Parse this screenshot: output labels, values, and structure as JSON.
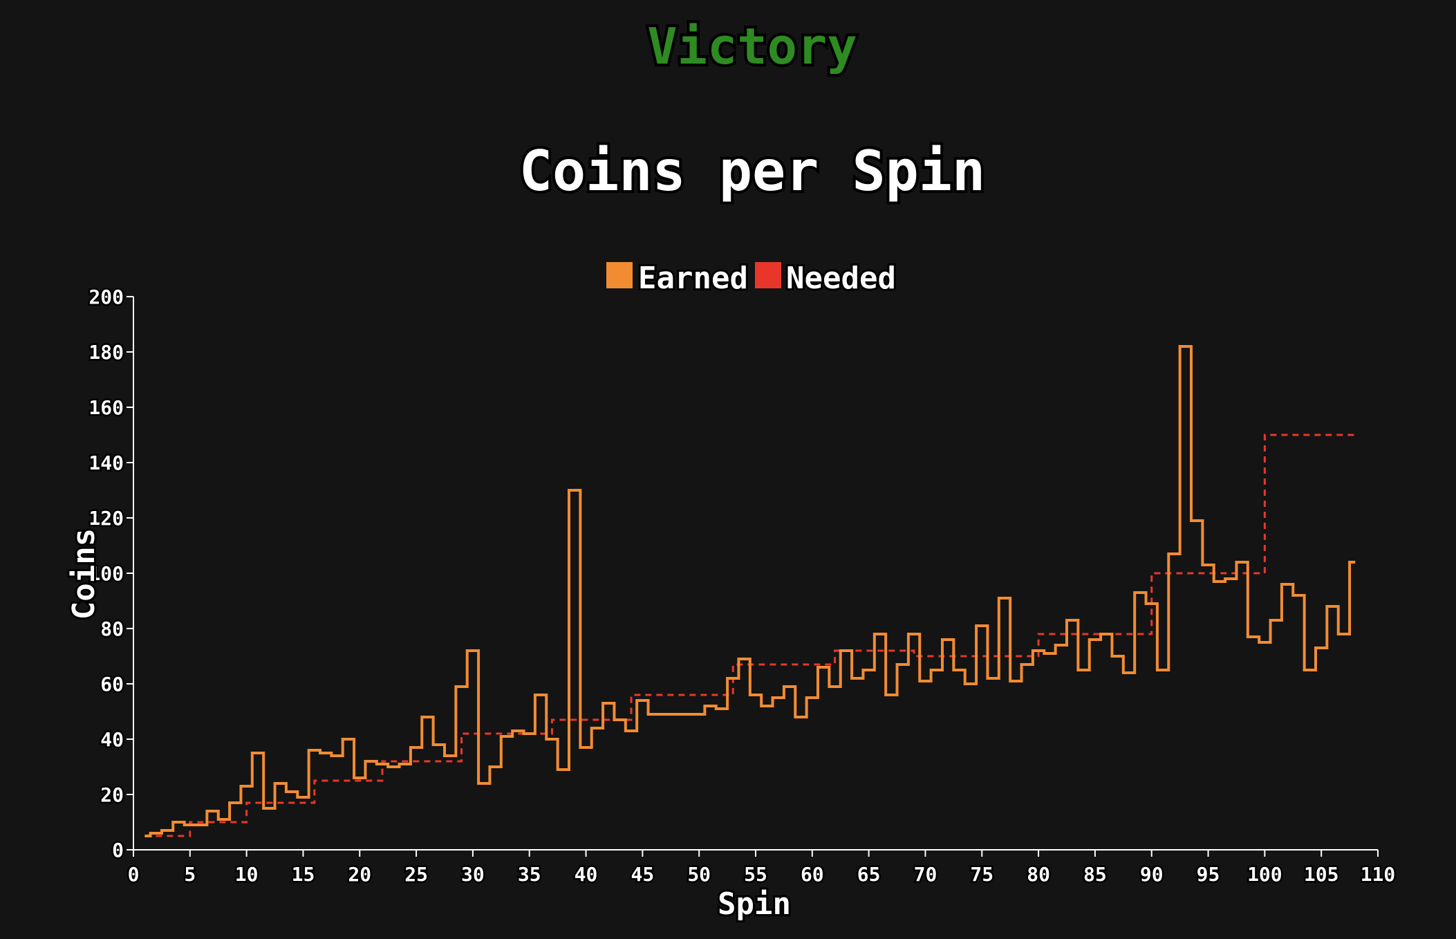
{
  "status": {
    "text": "Victory",
    "color": "#2e8b22"
  },
  "colors": {
    "background": "#141414",
    "axis": "#ffffff",
    "earned": "#f28c33",
    "needed": "#e8372a"
  },
  "chart_data": {
    "type": "line",
    "step": true,
    "title": "Coins per Spin",
    "xlabel": "Spin",
    "ylabel": "Coins",
    "xlim": [
      0,
      110
    ],
    "ylim": [
      0,
      200
    ],
    "xticks": [
      0,
      5,
      10,
      15,
      20,
      25,
      30,
      35,
      40,
      45,
      50,
      55,
      60,
      65,
      70,
      75,
      80,
      85,
      90,
      95,
      100,
      105,
      110
    ],
    "yticks": [
      0,
      20,
      40,
      60,
      80,
      100,
      120,
      140,
      160,
      180,
      200
    ],
    "legend_position": "top-center",
    "grid": false,
    "series": [
      {
        "name": "Earned",
        "style": "solid",
        "color": "#f28c33",
        "x": [
          1,
          2,
          3,
          4,
          5,
          6,
          7,
          8,
          9,
          10,
          11,
          12,
          13,
          14,
          15,
          16,
          17,
          18,
          19,
          20,
          21,
          22,
          23,
          24,
          25,
          26,
          27,
          28,
          29,
          30,
          31,
          32,
          33,
          34,
          35,
          36,
          37,
          38,
          39,
          40,
          41,
          42,
          43,
          44,
          45,
          46,
          47,
          48,
          49,
          50,
          51,
          52,
          53,
          54,
          55,
          56,
          57,
          58,
          59,
          60,
          61,
          62,
          63,
          64,
          65,
          66,
          67,
          68,
          69,
          70,
          71,
          72,
          73,
          74,
          75,
          76,
          77,
          78,
          79,
          80,
          81,
          82,
          83,
          84,
          85,
          86,
          87,
          88,
          89,
          90,
          91,
          92,
          93,
          94,
          95,
          96,
          97,
          98,
          99,
          100,
          101,
          102,
          103,
          104,
          105,
          106,
          107,
          108
        ],
        "values": [
          5,
          6,
          7,
          10,
          9,
          9,
          14,
          11,
          17,
          23,
          35,
          15,
          24,
          21,
          19,
          36,
          35,
          34,
          40,
          26,
          32,
          31,
          30,
          31,
          37,
          48,
          38,
          34,
          59,
          72,
          24,
          30,
          41,
          43,
          42,
          56,
          40,
          29,
          130,
          37,
          44,
          53,
          47,
          43,
          54,
          49,
          49,
          49,
          49,
          49,
          52,
          51,
          62,
          69,
          56,
          52,
          55,
          59,
          48,
          55,
          66,
          59,
          72,
          62,
          65,
          78,
          56,
          67,
          78,
          61,
          65,
          76,
          65,
          60,
          81,
          62,
          91,
          61,
          67,
          72,
          71,
          74,
          83,
          65,
          76,
          78,
          70,
          64,
          93,
          89,
          65,
          107,
          182,
          119,
          103,
          97,
          98,
          104,
          77,
          75,
          83,
          96,
          92,
          65,
          73,
          88,
          78,
          104
        ]
      },
      {
        "name": "Needed",
        "style": "dashed",
        "color": "#e8372a",
        "segments": [
          {
            "x_start": 1,
            "x_end": 5,
            "value": 5
          },
          {
            "x_start": 5,
            "x_end": 10,
            "value": 10
          },
          {
            "x_start": 10,
            "x_end": 16,
            "value": 17
          },
          {
            "x_start": 16,
            "x_end": 22,
            "value": 25
          },
          {
            "x_start": 22,
            "x_end": 29,
            "value": 32
          },
          {
            "x_start": 29,
            "x_end": 37,
            "value": 42
          },
          {
            "x_start": 37,
            "x_end": 44,
            "value": 47
          },
          {
            "x_start": 44,
            "x_end": 53,
            "value": 56
          },
          {
            "x_start": 53,
            "x_end": 62,
            "value": 67
          },
          {
            "x_start": 62,
            "x_end": 69,
            "value": 72
          },
          {
            "x_start": 69,
            "x_end": 80,
            "value": 70
          },
          {
            "x_start": 80,
            "x_end": 90,
            "value": 78
          },
          {
            "x_start": 90,
            "x_end": 100,
            "value": 100
          },
          {
            "x_start": 100,
            "x_end": 108,
            "value": 150
          }
        ]
      }
    ]
  }
}
